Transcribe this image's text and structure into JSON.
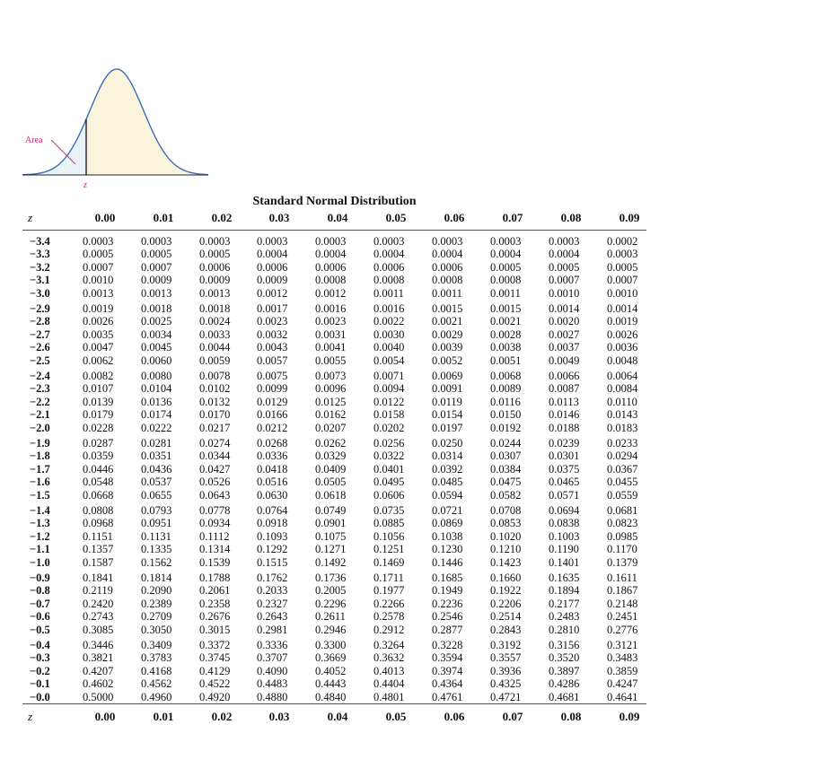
{
  "figure": {
    "area_label": "Area",
    "z_label": "z",
    "curve_color": "#3a6fb5",
    "fill_color": "#fbf4dc",
    "area_fill_color": "#e9f2f7",
    "label_color": "#d0287a"
  },
  "table": {
    "title": "Standard Normal Distribution",
    "z_header": "z",
    "columns": [
      "0.00",
      "0.01",
      "0.02",
      "0.03",
      "0.04",
      "0.05",
      "0.06",
      "0.07",
      "0.08",
      "0.09"
    ],
    "groups": [
      [
        {
          "z": "−3.4",
          "p": [
            "0.0003",
            "0.0003",
            "0.0003",
            "0.0003",
            "0.0003",
            "0.0003",
            "0.0003",
            "0.0003",
            "0.0003",
            "0.0002"
          ]
        },
        {
          "z": "−3.3",
          "p": [
            "0.0005",
            "0.0005",
            "0.0005",
            "0.0004",
            "0.0004",
            "0.0004",
            "0.0004",
            "0.0004",
            "0.0004",
            "0.0003"
          ]
        },
        {
          "z": "−3.2",
          "p": [
            "0.0007",
            "0.0007",
            "0.0006",
            "0.0006",
            "0.0006",
            "0.0006",
            "0.0006",
            "0.0005",
            "0.0005",
            "0.0005"
          ]
        },
        {
          "z": "−3.1",
          "p": [
            "0.0010",
            "0.0009",
            "0.0009",
            "0.0009",
            "0.0008",
            "0.0008",
            "0.0008",
            "0.0008",
            "0.0007",
            "0.0007"
          ]
        },
        {
          "z": "−3.0",
          "p": [
            "0.0013",
            "0.0013",
            "0.0013",
            "0.0012",
            "0.0012",
            "0.0011",
            "0.0011",
            "0.0011",
            "0.0010",
            "0.0010"
          ]
        }
      ],
      [
        {
          "z": "−2.9",
          "p": [
            "0.0019",
            "0.0018",
            "0.0018",
            "0.0017",
            "0.0016",
            "0.0016",
            "0.0015",
            "0.0015",
            "0.0014",
            "0.0014"
          ]
        },
        {
          "z": "−2.8",
          "p": [
            "0.0026",
            "0.0025",
            "0.0024",
            "0.0023",
            "0.0023",
            "0.0022",
            "0.0021",
            "0.0021",
            "0.0020",
            "0.0019"
          ]
        },
        {
          "z": "−2.7",
          "p": [
            "0.0035",
            "0.0034",
            "0.0033",
            "0.0032",
            "0.0031",
            "0.0030",
            "0.0029",
            "0.0028",
            "0.0027",
            "0.0026"
          ]
        },
        {
          "z": "−2.6",
          "p": [
            "0.0047",
            "0.0045",
            "0.0044",
            "0.0043",
            "0.0041",
            "0.0040",
            "0.0039",
            "0.0038",
            "0.0037",
            "0.0036"
          ]
        },
        {
          "z": "−2.5",
          "p": [
            "0.0062",
            "0.0060",
            "0.0059",
            "0.0057",
            "0.0055",
            "0.0054",
            "0.0052",
            "0.0051",
            "0.0049",
            "0.0048"
          ]
        }
      ],
      [
        {
          "z": "−2.4",
          "p": [
            "0.0082",
            "0.0080",
            "0.0078",
            "0.0075",
            "0.0073",
            "0.0071",
            "0.0069",
            "0.0068",
            "0.0066",
            "0.0064"
          ]
        },
        {
          "z": "−2.3",
          "p": [
            "0.0107",
            "0.0104",
            "0.0102",
            "0.0099",
            "0.0096",
            "0.0094",
            "0.0091",
            "0.0089",
            "0.0087",
            "0.0084"
          ]
        },
        {
          "z": "−2.2",
          "p": [
            "0.0139",
            "0.0136",
            "0.0132",
            "0.0129",
            "0.0125",
            "0.0122",
            "0.0119",
            "0.0116",
            "0.0113",
            "0.0110"
          ]
        },
        {
          "z": "−2.1",
          "p": [
            "0.0179",
            "0.0174",
            "0.0170",
            "0.0166",
            "0.0162",
            "0.0158",
            "0.0154",
            "0.0150",
            "0.0146",
            "0.0143"
          ]
        },
        {
          "z": "−2.0",
          "p": [
            "0.0228",
            "0.0222",
            "0.0217",
            "0.0212",
            "0.0207",
            "0.0202",
            "0.0197",
            "0.0192",
            "0.0188",
            "0.0183"
          ]
        }
      ],
      [
        {
          "z": "−1.9",
          "p": [
            "0.0287",
            "0.0281",
            "0.0274",
            "0.0268",
            "0.0262",
            "0.0256",
            "0.0250",
            "0.0244",
            "0.0239",
            "0.0233"
          ]
        },
        {
          "z": "−1.8",
          "p": [
            "0.0359",
            "0.0351",
            "0.0344",
            "0.0336",
            "0.0329",
            "0.0322",
            "0.0314",
            "0.0307",
            "0.0301",
            "0.0294"
          ]
        },
        {
          "z": "−1.7",
          "p": [
            "0.0446",
            "0.0436",
            "0.0427",
            "0.0418",
            "0.0409",
            "0.0401",
            "0.0392",
            "0.0384",
            "0.0375",
            "0.0367"
          ]
        },
        {
          "z": "−1.6",
          "p": [
            "0.0548",
            "0.0537",
            "0.0526",
            "0.0516",
            "0.0505",
            "0.0495",
            "0.0485",
            "0.0475",
            "0.0465",
            "0.0455"
          ]
        },
        {
          "z": "−1.5",
          "p": [
            "0.0668",
            "0.0655",
            "0.0643",
            "0.0630",
            "0.0618",
            "0.0606",
            "0.0594",
            "0.0582",
            "0.0571",
            "0.0559"
          ]
        }
      ],
      [
        {
          "z": "−1.4",
          "p": [
            "0.0808",
            "0.0793",
            "0.0778",
            "0.0764",
            "0.0749",
            "0.0735",
            "0.0721",
            "0.0708",
            "0.0694",
            "0.0681"
          ]
        },
        {
          "z": "−1.3",
          "p": [
            "0.0968",
            "0.0951",
            "0.0934",
            "0.0918",
            "0.0901",
            "0.0885",
            "0.0869",
            "0.0853",
            "0.0838",
            "0.0823"
          ]
        },
        {
          "z": "−1.2",
          "p": [
            "0.1151",
            "0.1131",
            "0.1112",
            "0.1093",
            "0.1075",
            "0.1056",
            "0.1038",
            "0.1020",
            "0.1003",
            "0.0985"
          ]
        },
        {
          "z": "−1.1",
          "p": [
            "0.1357",
            "0.1335",
            "0.1314",
            "0.1292",
            "0.1271",
            "0.1251",
            "0.1230",
            "0.1210",
            "0.1190",
            "0.1170"
          ]
        },
        {
          "z": "−1.0",
          "p": [
            "0.1587",
            "0.1562",
            "0.1539",
            "0.1515",
            "0.1492",
            "0.1469",
            "0.1446",
            "0.1423",
            "0.1401",
            "0.1379"
          ]
        }
      ],
      [
        {
          "z": "−0.9",
          "p": [
            "0.1841",
            "0.1814",
            "0.1788",
            "0.1762",
            "0.1736",
            "0.1711",
            "0.1685",
            "0.1660",
            "0.1635",
            "0.1611"
          ]
        },
        {
          "z": "−0.8",
          "p": [
            "0.2119",
            "0.2090",
            "0.2061",
            "0.2033",
            "0.2005",
            "0.1977",
            "0.1949",
            "0.1922",
            "0.1894",
            "0.1867"
          ]
        },
        {
          "z": "−0.7",
          "p": [
            "0.2420",
            "0.2389",
            "0.2358",
            "0.2327",
            "0.2296",
            "0.2266",
            "0.2236",
            "0.2206",
            "0.2177",
            "0.2148"
          ]
        },
        {
          "z": "−0.6",
          "p": [
            "0.2743",
            "0.2709",
            "0.2676",
            "0.2643",
            "0.2611",
            "0.2578",
            "0.2546",
            "0.2514",
            "0.2483",
            "0.2451"
          ]
        },
        {
          "z": "−0.5",
          "p": [
            "0.3085",
            "0.3050",
            "0.3015",
            "0.2981",
            "0.2946",
            "0.2912",
            "0.2877",
            "0.2843",
            "0.2810",
            "0.2776"
          ]
        }
      ],
      [
        {
          "z": "−0.4",
          "p": [
            "0.3446",
            "0.3409",
            "0.3372",
            "0.3336",
            "0.3300",
            "0.3264",
            "0.3228",
            "0.3192",
            "0.3156",
            "0.3121"
          ]
        },
        {
          "z": "−0.3",
          "p": [
            "0.3821",
            "0.3783",
            "0.3745",
            "0.3707",
            "0.3669",
            "0.3632",
            "0.3594",
            "0.3557",
            "0.3520",
            "0.3483"
          ]
        },
        {
          "z": "−0.2",
          "p": [
            "0.4207",
            "0.4168",
            "0.4129",
            "0.4090",
            "0.4052",
            "0.4013",
            "0.3974",
            "0.3936",
            "0.3897",
            "0.3859"
          ]
        },
        {
          "z": "−0.1",
          "p": [
            "0.4602",
            "0.4562",
            "0.4522",
            "0.4483",
            "0.4443",
            "0.4404",
            "0.4364",
            "0.4325",
            "0.4286",
            "0.4247"
          ]
        },
        {
          "z": "−0.0",
          "p": [
            "0.5000",
            "0.4960",
            "0.4920",
            "0.4880",
            "0.4840",
            "0.4801",
            "0.4761",
            "0.4721",
            "0.4681",
            "0.4641"
          ]
        }
      ]
    ]
  }
}
